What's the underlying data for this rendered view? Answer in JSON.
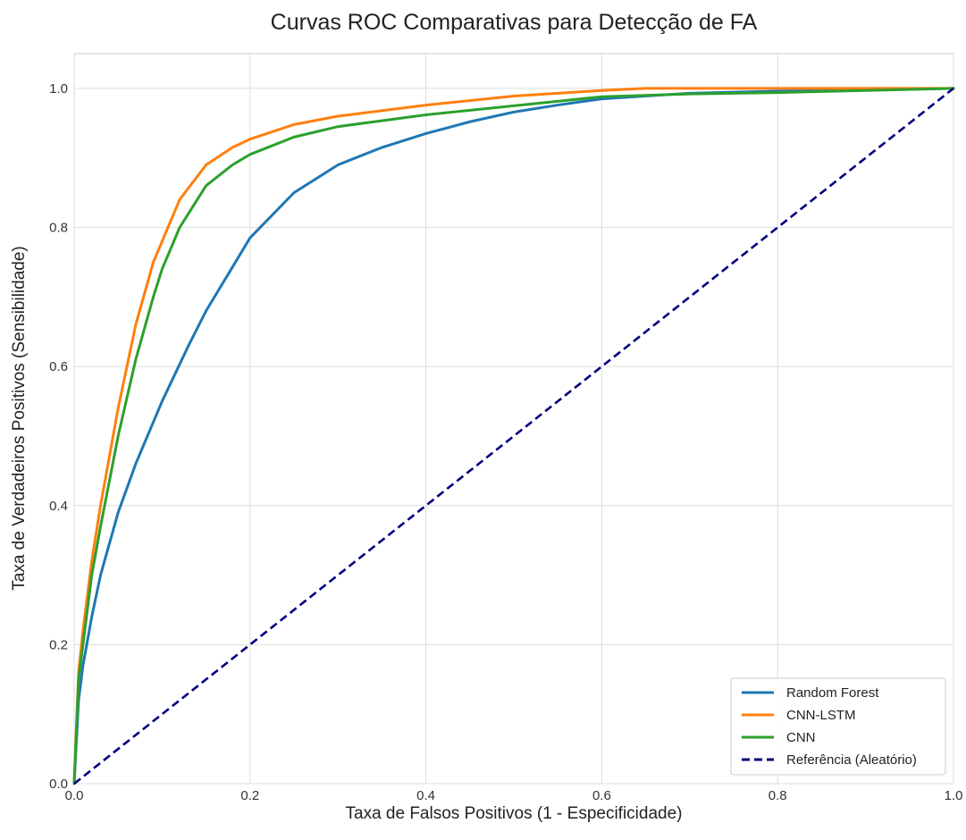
{
  "chart_data": {
    "type": "line",
    "title": "Curvas ROC Comparativas para Detecção de FA",
    "xlabel": "Taxa de Falsos Positivos (1 - Especificidade)",
    "ylabel": "Taxa de Verdadeiros Positivos (Sensibilidade)",
    "xlim": [
      0.0,
      1.0
    ],
    "ylim": [
      0.0,
      1.05
    ],
    "x_ticks": [
      0.0,
      0.2,
      0.4,
      0.6,
      0.8,
      1.0
    ],
    "y_ticks": [
      0.0,
      0.2,
      0.4,
      0.6,
      0.8,
      1.0
    ],
    "x_tick_labels": [
      "0.0",
      "0.2",
      "0.4",
      "0.6",
      "0.8",
      "1.0"
    ],
    "y_tick_labels": [
      "0.0",
      "0.2",
      "0.4",
      "0.6",
      "0.8",
      "1.0"
    ],
    "grid": true,
    "legend_position": "lower-right",
    "series": [
      {
        "name": "Random Forest",
        "color": "#1f77b4",
        "style": "solid",
        "x": [
          0.0,
          0.005,
          0.01,
          0.02,
          0.03,
          0.05,
          0.07,
          0.1,
          0.13,
          0.15,
          0.2,
          0.25,
          0.3,
          0.35,
          0.4,
          0.45,
          0.5,
          0.55,
          0.6,
          0.7,
          0.8,
          0.9,
          1.0
        ],
        "y": [
          0.0,
          0.12,
          0.17,
          0.24,
          0.3,
          0.39,
          0.46,
          0.55,
          0.63,
          0.68,
          0.785,
          0.85,
          0.89,
          0.915,
          0.935,
          0.952,
          0.966,
          0.976,
          0.985,
          0.993,
          0.996,
          0.998,
          1.0
        ]
      },
      {
        "name": "CNN-LSTM",
        "color": "#ff7f0e",
        "style": "solid",
        "x": [
          0.0,
          0.005,
          0.01,
          0.02,
          0.03,
          0.05,
          0.07,
          0.09,
          0.1,
          0.12,
          0.15,
          0.18,
          0.2,
          0.25,
          0.3,
          0.4,
          0.5,
          0.6,
          0.65,
          0.7,
          0.8,
          0.9,
          1.0
        ],
        "y": [
          0.0,
          0.16,
          0.22,
          0.32,
          0.4,
          0.54,
          0.66,
          0.75,
          0.78,
          0.84,
          0.89,
          0.915,
          0.927,
          0.948,
          0.96,
          0.976,
          0.989,
          0.997,
          1.0,
          1.0,
          1.0,
          1.0,
          1.0
        ]
      },
      {
        "name": "CNN",
        "color": "#2ca02c",
        "style": "solid",
        "x": [
          0.0,
          0.005,
          0.01,
          0.02,
          0.03,
          0.05,
          0.07,
          0.09,
          0.1,
          0.12,
          0.15,
          0.18,
          0.2,
          0.25,
          0.3,
          0.4,
          0.5,
          0.6,
          0.7,
          0.8,
          0.9,
          1.0
        ],
        "y": [
          0.0,
          0.15,
          0.2,
          0.3,
          0.37,
          0.5,
          0.61,
          0.7,
          0.74,
          0.8,
          0.86,
          0.89,
          0.905,
          0.93,
          0.945,
          0.962,
          0.975,
          0.988,
          0.992,
          0.994,
          0.997,
          1.0
        ]
      },
      {
        "name": "Referência (Aleatório)",
        "color": "#000080",
        "style": "dashed",
        "x": [
          0.0,
          1.0
        ],
        "y": [
          0.0,
          1.0
        ]
      }
    ]
  }
}
